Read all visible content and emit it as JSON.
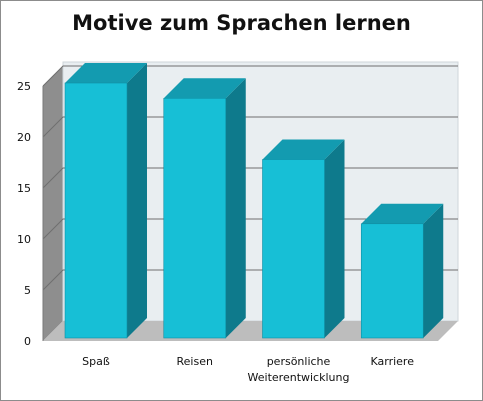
{
  "chart_data": {
    "type": "bar",
    "title": "Motive zum Sprachen lernen",
    "categories": [
      [
        "Spaß"
      ],
      [
        "Reisen"
      ],
      [
        "persönliche",
        "Weiterentwicklung"
      ],
      [
        "Karriere"
      ]
    ],
    "values": [
      25,
      23.5,
      17.5,
      11.2
    ],
    "ylim": [
      0,
      25
    ],
    "yticks": [
      "0",
      "5",
      "10",
      "15",
      "20",
      "25"
    ],
    "grid": true,
    "legend": "none",
    "colors": {
      "bar_front": "#17bfd6",
      "bar_top": "#139bb0",
      "bar_side": "#0e7a8c",
      "back_wall": "#e9eef1",
      "side_wall": "#8e8e8e",
      "floor": "#bdbdbd",
      "gridline": "#6f6f6f"
    }
  }
}
